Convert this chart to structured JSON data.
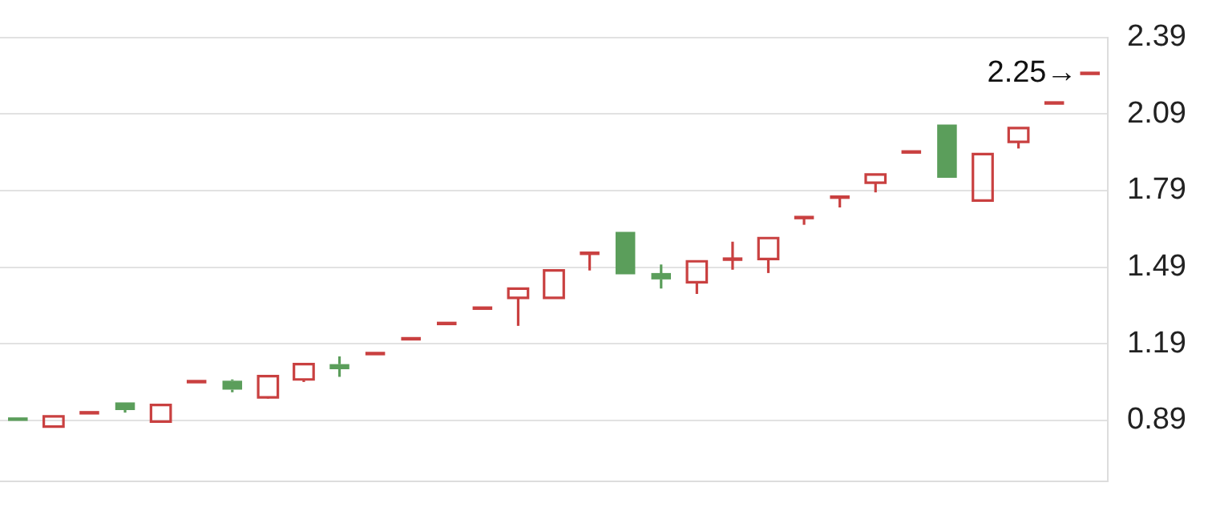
{
  "chart_data": {
    "type": "candlestick",
    "categories": [
      null,
      null,
      null,
      null,
      null,
      null,
      null,
      null,
      null,
      null,
      null,
      null,
      null,
      null,
      null,
      null,
      null,
      null,
      null,
      null,
      null,
      null,
      null,
      null,
      null,
      null,
      null,
      null,
      null,
      null,
      null
    ],
    "ohlc": [
      [
        0.895,
        0.895,
        0.885,
        0.885
      ],
      [
        0.865,
        0.905,
        0.865,
        0.905
      ],
      [
        0.92,
        0.92,
        0.92,
        0.92
      ],
      [
        0.96,
        0.96,
        0.92,
        0.93
      ],
      [
        0.885,
        0.95,
        0.885,
        0.95
      ],
      [
        1.042,
        1.042,
        1.042,
        1.042
      ],
      [
        1.045,
        1.05,
        1.0,
        1.01
      ],
      [
        0.98,
        1.063,
        0.975,
        1.063
      ],
      [
        1.05,
        1.11,
        1.04,
        1.11
      ],
      [
        1.11,
        1.14,
        1.06,
        1.09
      ],
      [
        1.152,
        1.152,
        1.152,
        1.152
      ],
      [
        1.21,
        1.21,
        1.21,
        1.21
      ],
      [
        1.27,
        1.27,
        1.27,
        1.27
      ],
      [
        1.33,
        1.33,
        1.33,
        1.33
      ],
      [
        1.37,
        1.406,
        1.26,
        1.406
      ],
      [
        1.37,
        1.477,
        1.37,
        1.477
      ],
      [
        1.545,
        1.545,
        1.477,
        1.545
      ],
      [
        1.628,
        1.628,
        1.462,
        1.462
      ],
      [
        1.467,
        1.5,
        1.406,
        1.442
      ],
      [
        1.431,
        1.513,
        1.385,
        1.513
      ],
      [
        1.522,
        1.59,
        1.48,
        1.522
      ],
      [
        1.522,
        1.604,
        1.467,
        1.604
      ],
      [
        1.685,
        1.685,
        1.656,
        1.685
      ],
      [
        1.765,
        1.765,
        1.724,
        1.765
      ],
      [
        1.821,
        1.853,
        1.783,
        1.853
      ],
      [
        1.942,
        1.942,
        1.942,
        1.942
      ],
      [
        2.049,
        2.049,
        1.84,
        1.84
      ],
      [
        1.751,
        1.933,
        1.751,
        1.933
      ],
      [
        1.981,
        2.035,
        1.955,
        2.035
      ],
      [
        2.134,
        2.134,
        2.134,
        2.134
      ],
      [
        2.25,
        2.25,
        2.25,
        2.25
      ]
    ],
    "colors": [
      "#5b9e5b",
      "#c94040",
      "#c94040",
      "#5b9e5b",
      "#c94040",
      "#c94040",
      "#5b9e5b",
      "#c94040",
      "#c94040",
      "#5b9e5b",
      "#c94040",
      "#c94040",
      "#c94040",
      "#c94040",
      "#c94040",
      "#c94040",
      "#c94040",
      "#5b9e5b",
      "#5b9e5b",
      "#c94040",
      "#c94040",
      "#c94040",
      "#c94040",
      "#c94040",
      "#c94040",
      "#c94040",
      "#5b9e5b",
      "#c94040",
      "#c94040",
      "#c94040",
      "#c94040"
    ],
    "ylim": [
      0.65,
      2.39
    ],
    "yticks": [
      0.89,
      1.19,
      1.49,
      1.79,
      2.09,
      2.39
    ],
    "grid": "y",
    "tick_labels": "y",
    "annotations": [
      "2.25→"
    ]
  }
}
